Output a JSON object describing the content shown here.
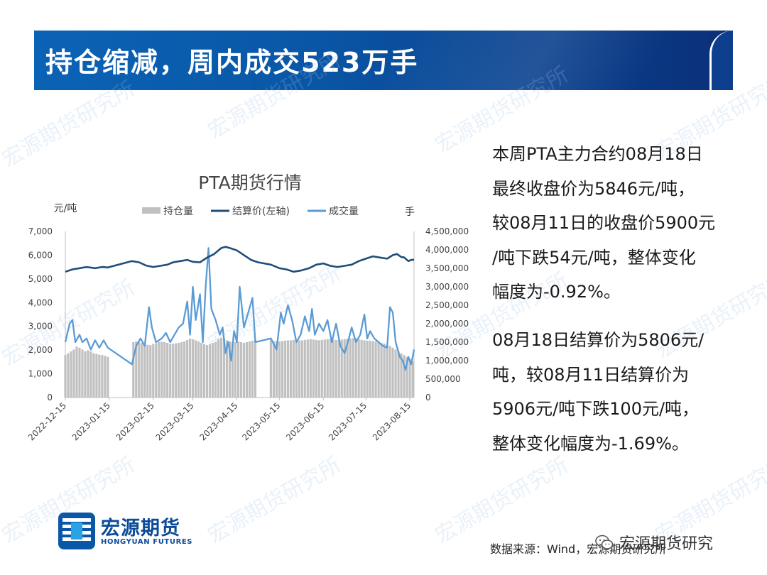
{
  "header": {
    "title": "持仓缩减，周内成交523万手"
  },
  "description": {
    "paragraph1_lines": [
      "本周PTA主力合约08月18日",
      "最终收盘价为5846元/吨，",
      "较08月11日的收盘价5900元",
      "/吨下跌54元/吨，整体变化",
      "幅度为-0.92%。"
    ],
    "paragraph2_lines": [
      "08月18日结算价为5806元/",
      "吨，较08月11日结算价为",
      "5906元/吨下跌100元/吨，",
      "整体变化幅度为-1.69%。"
    ]
  },
  "source": "数据来源：Wind，宏源期货研究所",
  "logo": {
    "cn": "宏源期货",
    "en": "HONGYUAN FUTURES"
  },
  "wechat_label": "宏源期货研究",
  "watermark_text": "宏源期货研究所",
  "colors": {
    "banner": "#0a56a6",
    "bar": "#c0c0c0",
    "settlement": "#1f4e79",
    "volume": "#5b9bd5"
  },
  "chart_data": {
    "type": "bar+line",
    "title": "PTA期货行情",
    "ylabel_left": "元/吨",
    "ylabel_right": "手",
    "legend": [
      "持仓量",
      "结算价(左轴)",
      "成交量"
    ],
    "legend_position": "top",
    "grid": false,
    "ylim_left": [
      0,
      7000
    ],
    "ylim_right": [
      0,
      4500000
    ],
    "yticks_left": [
      "0",
      "1,000",
      "2,000",
      "3,000",
      "4,000",
      "5,000",
      "6,000",
      "7,000"
    ],
    "yticks_right": [
      "0",
      "500,000",
      "1,000,000",
      "1,500,000",
      "2,000,000",
      "2,500,000",
      "3,000,000",
      "3,500,000",
      "4,000,000",
      "4,500,000"
    ],
    "x_ticks": [
      "2022-12-15",
      "2023-01-15",
      "2023-02-15",
      "2023-03-15",
      "2023-04-15",
      "2023-05-15",
      "2023-06-15",
      "2023-07-15",
      "2023-08-15"
    ],
    "x_range": [
      "2022-12-15",
      "2023-08-18"
    ],
    "series": [
      {
        "name": "持仓量",
        "axis": "right",
        "type": "bar",
        "points": [
          [
            "2022-12-15",
            1150000
          ],
          [
            "2022-12-17",
            1200000
          ],
          [
            "2022-12-19",
            1250000
          ],
          [
            "2022-12-21",
            1300000
          ],
          [
            "2022-12-23",
            1380000
          ],
          [
            "2022-12-25",
            1350000
          ],
          [
            "2022-12-27",
            1300000
          ],
          [
            "2022-12-29",
            1250000
          ],
          [
            "2022-12-31",
            1280000
          ],
          [
            "2023-01-02",
            1250000
          ],
          [
            "2023-01-04",
            1200000
          ],
          [
            "2023-01-06",
            1180000
          ],
          [
            "2023-01-08",
            1160000
          ],
          [
            "2023-01-10",
            1150000
          ],
          [
            "2023-01-12",
            1130000
          ],
          [
            "2023-01-14",
            1100000
          ],
          [
            "2023-02-01",
            1500000
          ],
          [
            "2023-02-03",
            1520000
          ],
          [
            "2023-02-05",
            1500000
          ],
          [
            "2023-02-07",
            1480000
          ],
          [
            "2023-02-09",
            1460000
          ],
          [
            "2023-02-11",
            1430000
          ],
          [
            "2023-02-13",
            1420000
          ],
          [
            "2023-02-15",
            1450000
          ],
          [
            "2023-02-17",
            1470000
          ],
          [
            "2023-02-19",
            1500000
          ],
          [
            "2023-02-21",
            1510000
          ],
          [
            "2023-02-23",
            1500000
          ],
          [
            "2023-02-25",
            1480000
          ],
          [
            "2023-02-27",
            1450000
          ],
          [
            "2023-03-01",
            1460000
          ],
          [
            "2023-03-03",
            1470000
          ],
          [
            "2023-03-05",
            1480000
          ],
          [
            "2023-03-07",
            1500000
          ],
          [
            "2023-03-09",
            1520000
          ],
          [
            "2023-03-11",
            1560000
          ],
          [
            "2023-03-13",
            1600000
          ],
          [
            "2023-03-15",
            1580000
          ],
          [
            "2023-03-17",
            1550000
          ],
          [
            "2023-03-19",
            1520000
          ],
          [
            "2023-03-21",
            1480000
          ],
          [
            "2023-03-23",
            1450000
          ],
          [
            "2023-03-25",
            1420000
          ],
          [
            "2023-03-27",
            1450000
          ],
          [
            "2023-03-29",
            1480000
          ],
          [
            "2023-03-31",
            1500000
          ],
          [
            "2023-04-02",
            1580000
          ],
          [
            "2023-04-04",
            1620000
          ],
          [
            "2023-04-06",
            1600000
          ],
          [
            "2023-04-08",
            1550000
          ],
          [
            "2023-04-10",
            1520000
          ],
          [
            "2023-04-12",
            1500000
          ],
          [
            "2023-04-14",
            1500000
          ],
          [
            "2023-04-16",
            1520000
          ],
          [
            "2023-04-18",
            1500000
          ],
          [
            "2023-04-20",
            1480000
          ],
          [
            "2023-04-22",
            1500000
          ],
          [
            "2023-04-24",
            1520000
          ],
          [
            "2023-04-26",
            1540000
          ],
          [
            "2023-04-28",
            1560000
          ],
          [
            "2023-05-09",
            1550000
          ],
          [
            "2023-05-11",
            1530000
          ],
          [
            "2023-05-13",
            1520000
          ],
          [
            "2023-05-15",
            1520000
          ],
          [
            "2023-05-17",
            1530000
          ],
          [
            "2023-05-19",
            1540000
          ],
          [
            "2023-05-21",
            1550000
          ],
          [
            "2023-05-23",
            1550000
          ],
          [
            "2023-05-25",
            1560000
          ],
          [
            "2023-05-27",
            1560000
          ],
          [
            "2023-05-29",
            1550000
          ],
          [
            "2023-05-31",
            1550000
          ],
          [
            "2023-06-02",
            1560000
          ],
          [
            "2023-06-04",
            1570000
          ],
          [
            "2023-06-06",
            1580000
          ],
          [
            "2023-06-08",
            1570000
          ],
          [
            "2023-06-10",
            1560000
          ],
          [
            "2023-06-12",
            1550000
          ],
          [
            "2023-06-14",
            1560000
          ],
          [
            "2023-06-16",
            1570000
          ],
          [
            "2023-06-18",
            1580000
          ],
          [
            "2023-06-20",
            1580000
          ],
          [
            "2023-06-22",
            1570000
          ],
          [
            "2023-06-24",
            1560000
          ],
          [
            "2023-06-26",
            1560000
          ],
          [
            "2023-06-28",
            1570000
          ],
          [
            "2023-06-30",
            1580000
          ],
          [
            "2023-07-02",
            1590000
          ],
          [
            "2023-07-04",
            1600000
          ],
          [
            "2023-07-06",
            1610000
          ],
          [
            "2023-07-08",
            1600000
          ],
          [
            "2023-07-10",
            1580000
          ],
          [
            "2023-07-12",
            1560000
          ],
          [
            "2023-07-14",
            1550000
          ],
          [
            "2023-07-16",
            1540000
          ],
          [
            "2023-07-18",
            1540000
          ],
          [
            "2023-07-20",
            1530000
          ],
          [
            "2023-07-22",
            1520000
          ],
          [
            "2023-07-24",
            1500000
          ],
          [
            "2023-07-26",
            1480000
          ],
          [
            "2023-07-28",
            1460000
          ],
          [
            "2023-07-30",
            1430000
          ],
          [
            "2023-08-01",
            1400000
          ],
          [
            "2023-08-03",
            1350000
          ],
          [
            "2023-08-05",
            1300000
          ],
          [
            "2023-08-07",
            1250000
          ],
          [
            "2023-08-09",
            1200000
          ],
          [
            "2023-08-11",
            1150000
          ],
          [
            "2023-08-13",
            1100000
          ],
          [
            "2023-08-15",
            1050000
          ],
          [
            "2023-08-17",
            980000
          ]
        ]
      },
      {
        "name": "结算价(左轴)",
        "axis": "left",
        "type": "line",
        "points": [
          [
            "2022-12-15",
            5300
          ],
          [
            "2022-12-20",
            5400
          ],
          [
            "2022-12-25",
            5450
          ],
          [
            "2022-12-30",
            5500
          ],
          [
            "2023-01-05",
            5450
          ],
          [
            "2023-01-10",
            5500
          ],
          [
            "2023-01-14",
            5480
          ],
          [
            "2023-01-31",
            5750
          ],
          [
            "2023-02-05",
            5700
          ],
          [
            "2023-02-10",
            5560
          ],
          [
            "2023-02-15",
            5500
          ],
          [
            "2023-02-20",
            5550
          ],
          [
            "2023-02-25",
            5600
          ],
          [
            "2023-03-01",
            5700
          ],
          [
            "2023-03-06",
            5750
          ],
          [
            "2023-03-11",
            5800
          ],
          [
            "2023-03-15",
            5720
          ],
          [
            "2023-03-20",
            5700
          ],
          [
            "2023-03-25",
            5900
          ],
          [
            "2023-03-30",
            6050
          ],
          [
            "2023-04-04",
            6300
          ],
          [
            "2023-04-07",
            6350
          ],
          [
            "2023-04-10",
            6300
          ],
          [
            "2023-04-15",
            6200
          ],
          [
            "2023-04-20",
            6000
          ],
          [
            "2023-04-25",
            5800
          ],
          [
            "2023-04-30",
            5700
          ],
          [
            "2023-05-09",
            5600
          ],
          [
            "2023-05-15",
            5450
          ],
          [
            "2023-05-20",
            5400
          ],
          [
            "2023-05-25",
            5300
          ],
          [
            "2023-05-30",
            5350
          ],
          [
            "2023-06-05",
            5450
          ],
          [
            "2023-06-10",
            5600
          ],
          [
            "2023-06-15",
            5650
          ],
          [
            "2023-06-20",
            5550
          ],
          [
            "2023-06-25",
            5500
          ],
          [
            "2023-06-30",
            5550
          ],
          [
            "2023-07-05",
            5600
          ],
          [
            "2023-07-10",
            5750
          ],
          [
            "2023-07-15",
            5850
          ],
          [
            "2023-07-20",
            5950
          ],
          [
            "2023-07-25",
            5900
          ],
          [
            "2023-07-30",
            5850
          ],
          [
            "2023-08-03",
            6000
          ],
          [
            "2023-08-06",
            6050
          ],
          [
            "2023-08-09",
            5920
          ],
          [
            "2023-08-11",
            5906
          ],
          [
            "2023-08-14",
            5750
          ],
          [
            "2023-08-16",
            5800
          ],
          [
            "2023-08-18",
            5806
          ]
        ]
      },
      {
        "name": "成交量",
        "axis": "right",
        "type": "line",
        "points": [
          [
            "2022-12-15",
            1500000
          ],
          [
            "2022-12-18",
            2000000
          ],
          [
            "2022-12-20",
            2100000
          ],
          [
            "2022-12-22",
            1500000
          ],
          [
            "2022-12-25",
            1700000
          ],
          [
            "2022-12-27",
            1500000
          ],
          [
            "2022-12-30",
            1600000
          ],
          [
            "2023-01-02",
            1300000
          ],
          [
            "2023-01-05",
            1550000
          ],
          [
            "2023-01-08",
            1350000
          ],
          [
            "2023-01-11",
            1550000
          ],
          [
            "2023-01-14",
            1350000
          ],
          [
            "2023-01-31",
            900000
          ],
          [
            "2023-02-03",
            1400000
          ],
          [
            "2023-02-06",
            1600000
          ],
          [
            "2023-02-09",
            1400000
          ],
          [
            "2023-02-12",
            2450000
          ],
          [
            "2023-02-14",
            1900000
          ],
          [
            "2023-02-17",
            1500000
          ],
          [
            "2023-02-21",
            1600000
          ],
          [
            "2023-02-24",
            1750000
          ],
          [
            "2023-02-27",
            1500000
          ],
          [
            "2023-03-02",
            1700000
          ],
          [
            "2023-03-05",
            1900000
          ],
          [
            "2023-03-08",
            2000000
          ],
          [
            "2023-03-11",
            2600000
          ],
          [
            "2023-03-13",
            1700000
          ],
          [
            "2023-03-15",
            3000000
          ],
          [
            "2023-03-17",
            2100000
          ],
          [
            "2023-03-20",
            2800000
          ],
          [
            "2023-03-22",
            1500000
          ],
          [
            "2023-03-24",
            3000000
          ],
          [
            "2023-03-26",
            4050000
          ],
          [
            "2023-03-28",
            2400000
          ],
          [
            "2023-03-31",
            2100000
          ],
          [
            "2023-04-03",
            1700000
          ],
          [
            "2023-04-05",
            1900000
          ],
          [
            "2023-04-07",
            1200000
          ],
          [
            "2023-04-09",
            1500000
          ],
          [
            "2023-04-11",
            1000000
          ],
          [
            "2023-04-13",
            1800000
          ],
          [
            "2023-04-15",
            1500000
          ],
          [
            "2023-04-17",
            3000000
          ],
          [
            "2023-04-20",
            1900000
          ],
          [
            "2023-04-23",
            2300000
          ],
          [
            "2023-04-26",
            2700000
          ],
          [
            "2023-04-28",
            1500000
          ],
          [
            "2023-05-09",
            1600000
          ],
          [
            "2023-05-13",
            1300000
          ],
          [
            "2023-05-16",
            2300000
          ],
          [
            "2023-05-18",
            2000000
          ],
          [
            "2023-05-21",
            2500000
          ],
          [
            "2023-05-24",
            2100000
          ],
          [
            "2023-05-27",
            1500000
          ],
          [
            "2023-05-30",
            1700000
          ],
          [
            "2023-06-02",
            2200000
          ],
          [
            "2023-06-05",
            1800000
          ],
          [
            "2023-06-07",
            2400000
          ],
          [
            "2023-06-09",
            1700000
          ],
          [
            "2023-06-12",
            2000000
          ],
          [
            "2023-06-15",
            1800000
          ],
          [
            "2023-06-18",
            2100000
          ],
          [
            "2023-06-21",
            1500000
          ],
          [
            "2023-06-24",
            2000000
          ],
          [
            "2023-06-27",
            1400000
          ],
          [
            "2023-06-30",
            1200000
          ],
          [
            "2023-07-03",
            1600000
          ],
          [
            "2023-07-05",
            1900000
          ],
          [
            "2023-07-08",
            1500000
          ],
          [
            "2023-07-11",
            1700000
          ],
          [
            "2023-07-14",
            2250000
          ],
          [
            "2023-07-16",
            1600000
          ],
          [
            "2023-07-18",
            1800000
          ],
          [
            "2023-07-21",
            1600000
          ],
          [
            "2023-07-24",
            1500000
          ],
          [
            "2023-07-27",
            1400000
          ],
          [
            "2023-07-30",
            1350000
          ],
          [
            "2023-08-01",
            2450000
          ],
          [
            "2023-08-03",
            2300000
          ],
          [
            "2023-08-05",
            1500000
          ],
          [
            "2023-08-08",
            1100000
          ],
          [
            "2023-08-10",
            1000000
          ],
          [
            "2023-08-12",
            750000
          ],
          [
            "2023-08-14",
            1100000
          ],
          [
            "2023-08-16",
            900000
          ],
          [
            "2023-08-18",
            1300000
          ]
        ]
      }
    ]
  }
}
